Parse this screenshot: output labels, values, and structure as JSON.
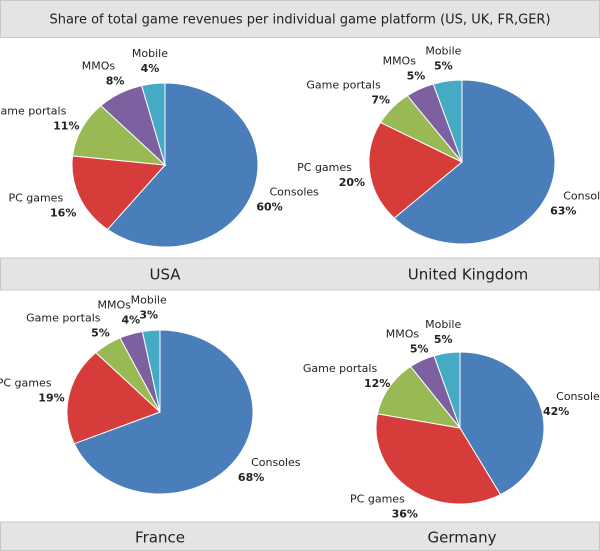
{
  "title": "Share of total game revenues per individual game platform  (US, UK, FR,GER)",
  "chart_data": [
    {
      "type": "pie",
      "title": "USA",
      "categories": [
        "Consoles",
        "PC games",
        "Game portals",
        "MMOs",
        "Mobile"
      ],
      "values": [
        60,
        16,
        11,
        8,
        4
      ],
      "value_labels": [
        "60%",
        "16%",
        "11%",
        "8%",
        "4%"
      ],
      "colors": [
        "#4a7ebb",
        "#d63d3a",
        "#98b954",
        "#7d60a0",
        "#46aac5"
      ]
    },
    {
      "type": "pie",
      "title": "United Kingdom",
      "categories": [
        "Consoles",
        "PC games",
        "Game portals",
        "MMOs",
        "Mobile"
      ],
      "values": [
        63,
        20,
        7,
        5,
        5
      ],
      "value_labels": [
        "63%",
        "20%",
        "7%",
        "5%",
        "5%"
      ],
      "colors": [
        "#4a7ebb",
        "#d63d3a",
        "#98b954",
        "#7d60a0",
        "#46aac5"
      ]
    },
    {
      "type": "pie",
      "title": "France",
      "categories": [
        "Consoles",
        "PC games",
        "Game portals",
        "MMOs",
        "Mobile"
      ],
      "values": [
        68,
        19,
        5,
        4,
        3
      ],
      "value_labels": [
        "68%",
        "19%",
        "5%",
        "4%",
        "3%"
      ],
      "colors": [
        "#4a7ebb",
        "#d63d3a",
        "#98b954",
        "#7d60a0",
        "#46aac5"
      ]
    },
    {
      "type": "pie",
      "title": "Germany",
      "categories": [
        "Consoles",
        "PC games",
        "Game portals",
        "MMOs",
        "Mobile"
      ],
      "values": [
        42,
        36,
        12,
        5,
        5
      ],
      "value_labels": [
        "42%",
        "36%",
        "12%",
        "5%",
        "5%"
      ],
      "colors": [
        "#4a7ebb",
        "#d63d3a",
        "#98b954",
        "#7d60a0",
        "#46aac5"
      ]
    }
  ]
}
